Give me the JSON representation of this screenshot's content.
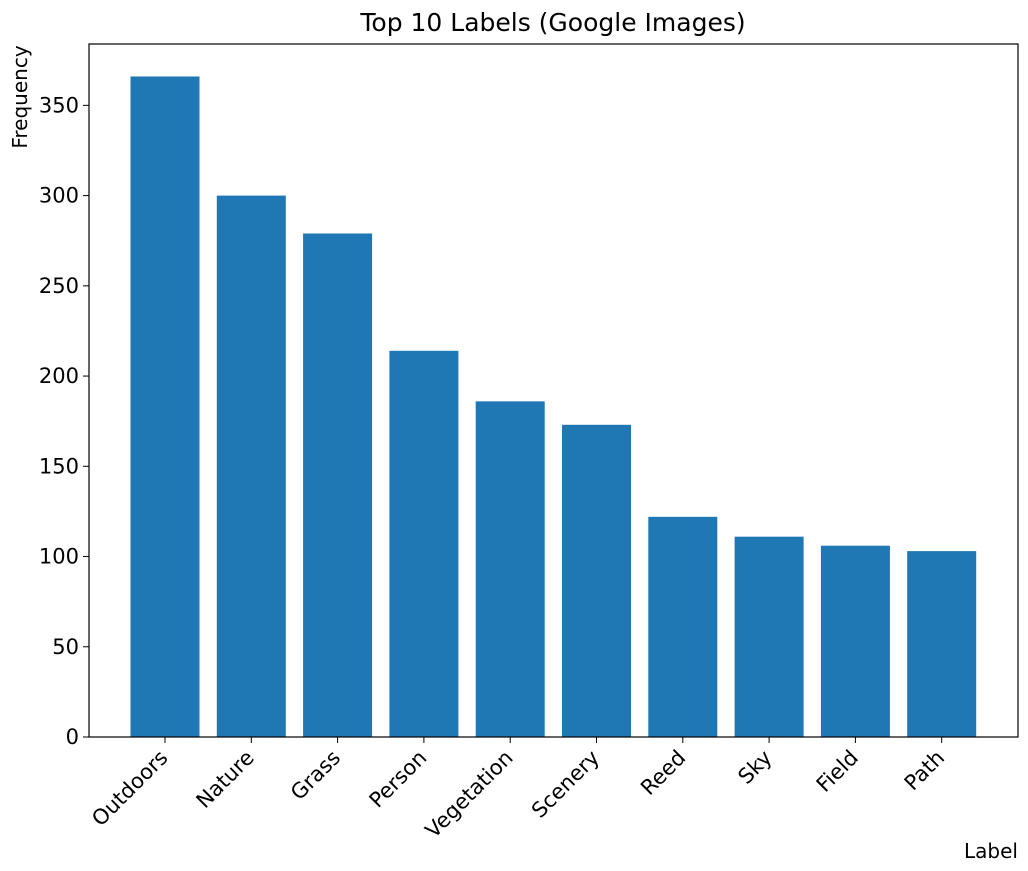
{
  "chart_data": {
    "type": "bar",
    "title": "Top 10 Labels (Google Images)",
    "xlabel": "Label",
    "ylabel": "Frequency",
    "categories": [
      "Outdoors",
      "Nature",
      "Grass",
      "Person",
      "Vegetation",
      "Scenery",
      "Reed",
      "Sky",
      "Field",
      "Path"
    ],
    "values": [
      366,
      300,
      279,
      214,
      186,
      173,
      122,
      111,
      106,
      103
    ],
    "ylim": [
      0,
      384
    ],
    "yticks": [
      0,
      50,
      100,
      150,
      200,
      250,
      300,
      350
    ],
    "grid": false,
    "bar_color": "#1f77b4"
  }
}
